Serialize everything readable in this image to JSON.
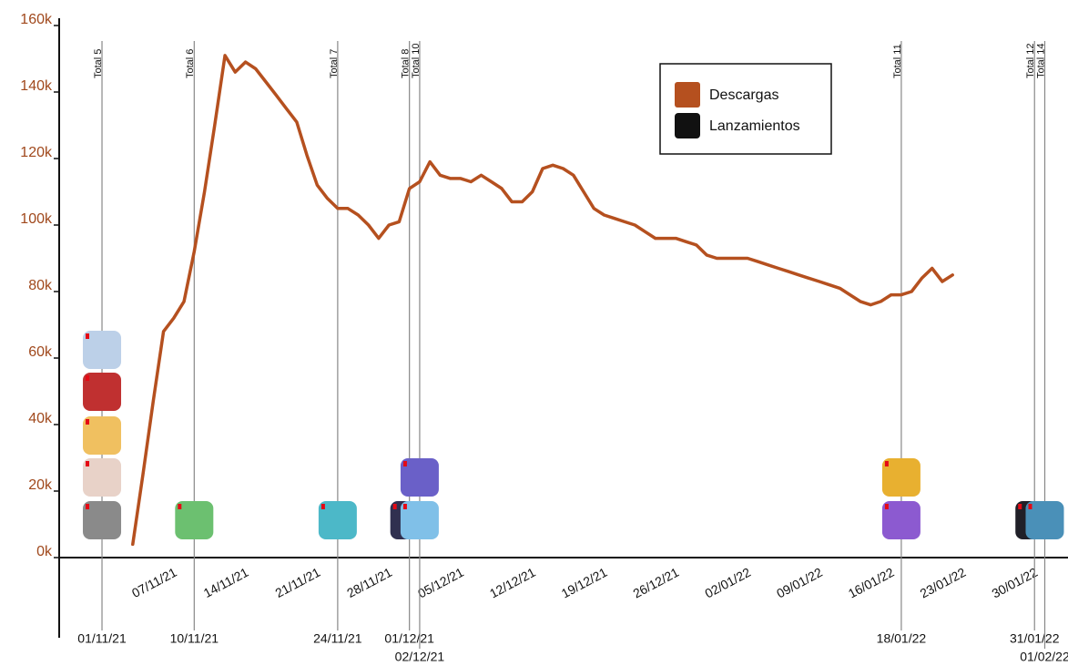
{
  "chart_data": {
    "type": "line",
    "x": [
      "04/11/21",
      "05/11/21",
      "06/11/21",
      "07/11/21",
      "08/11/21",
      "09/11/21",
      "10/11/21",
      "11/11/21",
      "12/11/21",
      "13/11/21",
      "14/11/21",
      "15/11/21",
      "16/11/21",
      "17/11/21",
      "18/11/21",
      "19/11/21",
      "20/11/21",
      "21/11/21",
      "22/11/21",
      "23/11/21",
      "24/11/21",
      "25/11/21",
      "26/11/21",
      "27/11/21",
      "28/11/21",
      "29/11/21",
      "30/11/21",
      "01/12/21",
      "02/12/21",
      "03/12/21",
      "04/12/21",
      "05/12/21",
      "06/12/21",
      "07/12/21",
      "08/12/21",
      "09/12/21",
      "10/12/21",
      "11/12/21",
      "12/12/21",
      "13/12/21",
      "14/12/21",
      "15/12/21",
      "16/12/21",
      "17/12/21",
      "18/12/21",
      "19/12/21",
      "20/12/21",
      "21/12/21",
      "22/12/21",
      "23/12/21",
      "24/12/21",
      "25/12/21",
      "26/12/21",
      "27/12/21",
      "28/12/21",
      "29/12/21",
      "30/12/21",
      "31/12/21",
      "01/01/22",
      "02/01/22",
      "03/01/22",
      "04/01/22",
      "05/01/22",
      "06/01/22",
      "07/01/22",
      "08/01/22",
      "09/01/22",
      "10/01/22",
      "11/01/22",
      "12/01/22",
      "13/01/22",
      "14/01/22",
      "15/01/22",
      "16/01/22",
      "17/01/22",
      "18/01/22",
      "19/01/22",
      "20/01/22",
      "21/01/22",
      "22/01/22",
      "23/01/22"
    ],
    "series": [
      {
        "name": "Descargas",
        "color": "#b5501f",
        "values": [
          4000,
          25000,
          47000,
          68000,
          72000,
          77000,
          92000,
          110000,
          130000,
          151000,
          146000,
          149000,
          147000,
          143000,
          139000,
          135000,
          131000,
          121000,
          112000,
          108000,
          105000,
          105000,
          103000,
          100000,
          96000,
          100000,
          101000,
          111000,
          113000,
          119000,
          115000,
          114000,
          114000,
          113000,
          115000,
          113000,
          111000,
          107000,
          107000,
          110000,
          117000,
          118000,
          117000,
          115000,
          110000,
          105000,
          103000,
          102000,
          101000,
          100000,
          98000,
          96000,
          96000,
          96000,
          95000,
          94000,
          91000,
          90000,
          90000,
          90000,
          90000,
          89000,
          88000,
          87000,
          86000,
          85000,
          84000,
          83000,
          82000,
          81000,
          79000,
          77000,
          76000,
          77000,
          79000,
          79000,
          80000,
          84000,
          87000,
          83000,
          85000
        ]
      }
    ],
    "launches_legend": {
      "name": "Lanzamientos",
      "color": "#111111"
    },
    "launches": [
      {
        "date": "01/11/21",
        "label": "Total 5"
      },
      {
        "date": "10/11/21",
        "label": "Total 6"
      },
      {
        "date": "24/11/21",
        "label": "Total 7"
      },
      {
        "date": "01/12/21",
        "label": "Total 8"
      },
      {
        "date": "02/12/21",
        "label": "Total 10"
      },
      {
        "date": "18/01/22",
        "label": "Total 11"
      },
      {
        "date": "31/01/22",
        "label": "Total 12"
      },
      {
        "date": "01/02/22",
        "label": "Total 14"
      }
    ],
    "xlim": [
      "28/10/21",
      "03/02/22"
    ],
    "xticks": [
      "07/11/21",
      "14/11/21",
      "21/11/21",
      "28/11/21",
      "05/12/21",
      "12/12/21",
      "19/12/21",
      "26/12/21",
      "02/01/22",
      "09/01/22",
      "16/01/22",
      "23/01/22",
      "30/01/22"
    ],
    "ylim": [
      0,
      160000
    ],
    "yticks": [
      {
        "value": 0,
        "label": "0k"
      },
      {
        "value": 20000,
        "label": "20k"
      },
      {
        "value": 40000,
        "label": "40k"
      },
      {
        "value": 60000,
        "label": "60k"
      },
      {
        "value": 80000,
        "label": "80k"
      },
      {
        "value": 100000,
        "label": "100k"
      },
      {
        "value": 120000,
        "label": "120k"
      },
      {
        "value": 140000,
        "label": "140k"
      },
      {
        "value": 160000,
        "label": "160k"
      }
    ],
    "legend": "top-right"
  }
}
